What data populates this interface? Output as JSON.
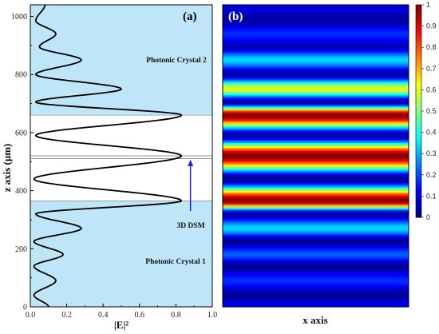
{
  "chart_data": [
    {
      "type": "line",
      "panel_label": "(a)",
      "xlabel": "|E|²",
      "ylabel": "z axis (μm)",
      "xlim": [
        0,
        1
      ],
      "ylim": [
        0,
        1040
      ],
      "xticks": [
        0.0,
        0.2,
        0.4,
        0.6,
        0.8,
        1.0
      ],
      "xtick_labels": [
        "0.0",
        "0.2",
        "0.4",
        "0.6",
        "0.8",
        "1.0"
      ],
      "yticks": [
        0,
        200,
        400,
        600,
        800,
        1000
      ],
      "ytick_labels": [
        "0",
        "200",
        "400",
        "600",
        "800",
        "1000"
      ],
      "regions": [
        {
          "name": "Photonic Crystal 1",
          "z": [
            0,
            365
          ],
          "color": "#bfe6f8"
        },
        {
          "name": "3D DSM",
          "z": [
            510,
            520
          ],
          "color": "#ffffff"
        },
        {
          "name": "Photonic Crystal 2",
          "z": [
            660,
            1040
          ],
          "color": "#bfe6f8"
        }
      ],
      "region_labels": {
        "pc1": "Photonic Crystal 1",
        "pc2": "Photonic Crystal 2"
      },
      "annotation": {
        "text": "3D DSM",
        "arrow_x": 0.88,
        "arrow_from_z": 330,
        "arrow_to_z": 515,
        "arrow_color": "#1a1aff"
      },
      "series": [
        {
          "color": "#000000",
          "points": [
            [
              0.1,
              0
            ],
            [
              0.02,
              40
            ],
            [
              0.14,
              90
            ],
            [
              0.02,
              140
            ],
            [
              0.18,
              180
            ],
            [
              0.02,
              225
            ],
            [
              0.28,
              270
            ],
            [
              0.03,
              320
            ],
            [
              0.83,
              365
            ],
            [
              0.02,
              440
            ],
            [
              0.83,
              520
            ],
            [
              0.03,
              590
            ],
            [
              0.83,
              660
            ],
            [
              0.03,
              705
            ],
            [
              0.5,
              750
            ],
            [
              0.03,
              800
            ],
            [
              0.28,
              850
            ],
            [
              0.05,
              895
            ],
            [
              0.14,
              940
            ],
            [
              0.03,
              985
            ],
            [
              0.08,
              1040
            ]
          ]
        }
      ],
      "grid": false
    },
    {
      "type": "heatmap",
      "panel_label": "(b)",
      "xlabel": "x axis",
      "colorbar": {
        "range": [
          0,
          1
        ],
        "ticks": [
          0,
          0.1,
          0.2,
          0.3,
          0.4,
          0.5,
          0.6,
          0.7,
          0.8,
          0.9,
          1
        ],
        "tick_labels": [
          "0",
          "0.1",
          "0.2",
          "0.3",
          "0.4",
          "0.5",
          "0.6",
          "0.7",
          "0.8",
          "0.9",
          "1"
        ],
        "colormap": "jet"
      },
      "profile_source": "same |E|² profile as panel (a), uniform along x"
    }
  ],
  "colors": {
    "crystal_fill": "#bfe6f8",
    "dsm_line": "#777777",
    "arrow": "#1a1aff",
    "curve": "#000000"
  }
}
